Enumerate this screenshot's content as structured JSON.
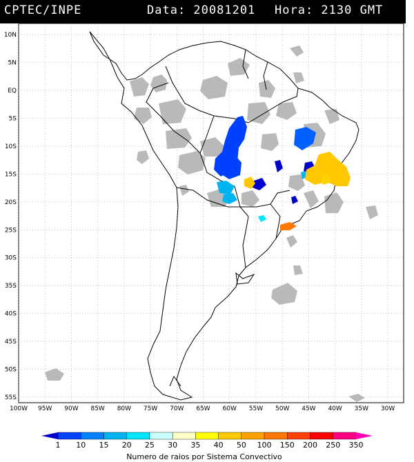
{
  "header": {
    "agency": "CPTEC/INPE",
    "date_label": "Data: 20081201",
    "time_label": "Hora: 2130 GMT"
  },
  "axes": {
    "lat_labels": [
      "10N",
      "5N",
      "EQ",
      "5S",
      "10S",
      "15S",
      "20S",
      "25S",
      "30S",
      "35S",
      "40S",
      "45S",
      "50S",
      "55S"
    ],
    "lon_labels": [
      "100W",
      "95W",
      "90W",
      "85W",
      "80W",
      "75W",
      "70W",
      "65W",
      "60W",
      "55W",
      "50W",
      "45W",
      "40W",
      "35W",
      "30W"
    ],
    "lat_range": [
      -56,
      12
    ],
    "lon_range": [
      -100,
      -27
    ],
    "grid": "dotted"
  },
  "legend": {
    "levels": [
      "1",
      "10",
      "15",
      "20",
      "25",
      "30",
      "35",
      "40",
      "50",
      "100",
      "150",
      "200",
      "250",
      "350"
    ],
    "colors": [
      "#0000cc",
      "#0040ff",
      "#0080ff",
      "#00b4f0",
      "#00e6ff",
      "#c8ffff",
      "#ffffc8",
      "#ffff00",
      "#ffc800",
      "#ffa000",
      "#ff7800",
      "#ff4000",
      "#ff0000",
      "#ff0080",
      "#ff00b4"
    ],
    "caption": "Numero de raios por Sistema Convectivo"
  },
  "colors": {
    "cloud": "#b4b4b4",
    "coast": "#000000"
  }
}
